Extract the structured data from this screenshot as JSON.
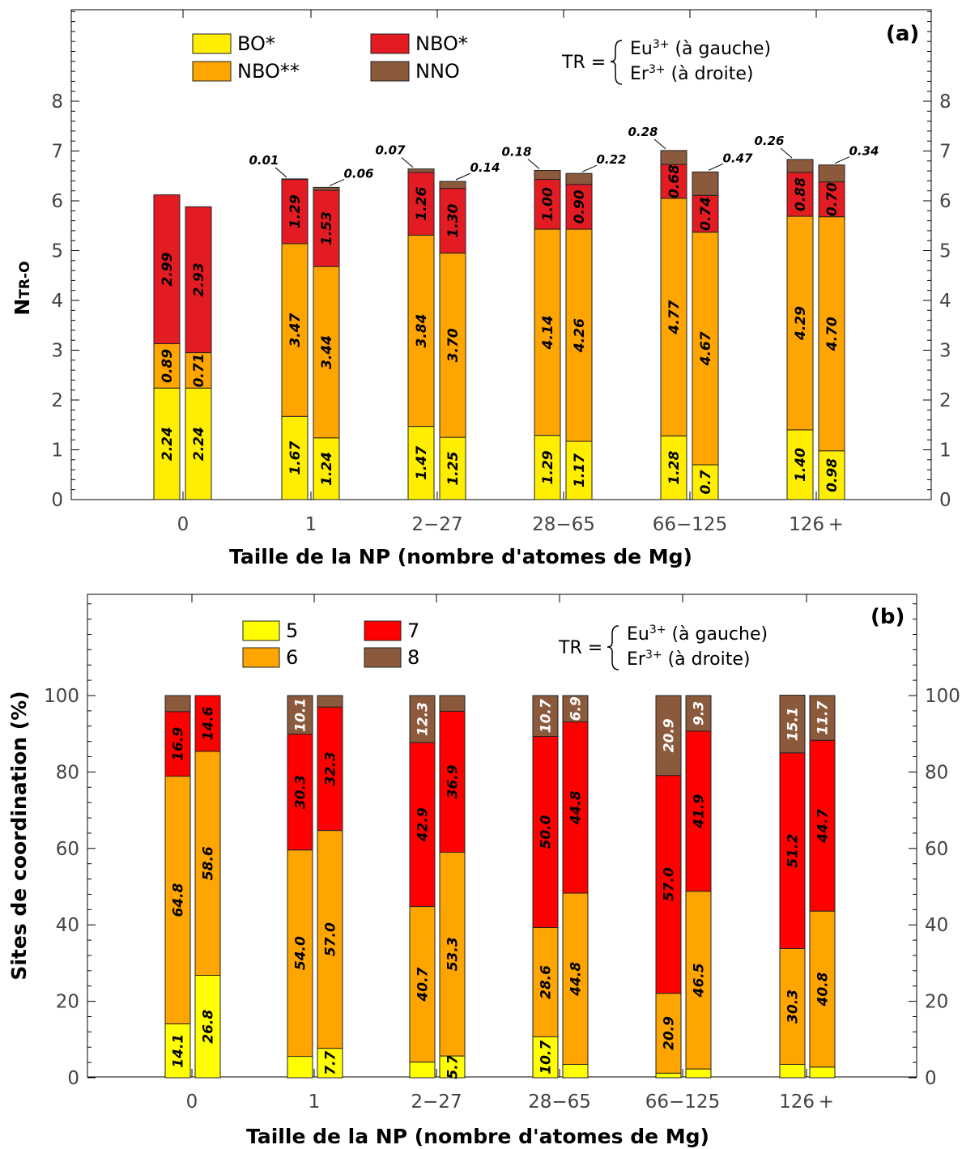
{
  "chart_data": [
    {
      "type": "bar",
      "panel_label": "(a)",
      "xlabel": "Taille de la NP (nombre d'atomes de Mg)",
      "ylabel_main": "N",
      "ylabel_sub": "TR-O",
      "ylim": [
        0,
        9
      ],
      "yticks": [
        "0",
        "1",
        "2",
        "3",
        "4",
        "5",
        "6",
        "7",
        "8"
      ],
      "categories": [
        "0",
        "1",
        "2−27",
        "28−65",
        "66−125",
        "126 +"
      ],
      "tr_prefix": "TR =",
      "tr_lines": [
        {
          "base": "Eu",
          "sup": "3+",
          "rest": " (à gauche)"
        },
        {
          "base": "Er",
          "sup": "3+",
          "rest": " (à droite)"
        }
      ],
      "series": [
        {
          "name": "BO*",
          "color": "#ffee00",
          "left": [
            2.24,
            1.67,
            1.47,
            1.29,
            1.28,
            1.4
          ],
          "right": [
            2.24,
            1.24,
            1.25,
            1.17,
            0.7,
            0.98
          ],
          "left_labels": [
            "2.24",
            "1.67",
            "1.47",
            "1.29",
            "1.28",
            "1.40"
          ],
          "right_labels": [
            "2.24",
            "1.24",
            "1.25",
            "1.17",
            "0.7",
            "0.98"
          ]
        },
        {
          "name": "NBO**",
          "color": "#ffa500",
          "left": [
            0.89,
            3.47,
            3.84,
            4.14,
            4.77,
            4.29
          ],
          "right": [
            0.71,
            3.44,
            3.7,
            4.26,
            4.67,
            4.7
          ],
          "left_labels": [
            "0.89",
            "3.47",
            "3.84",
            "4.14",
            "4.77",
            "4.29"
          ],
          "right_labels": [
            "0.71",
            "3.44",
            "3.70",
            "4.26",
            "4.67",
            "4.70"
          ]
        },
        {
          "name": "NBO*",
          "color": "#e31b23",
          "left": [
            2.99,
            1.29,
            1.26,
            1.0,
            0.68,
            0.88
          ],
          "right": [
            2.93,
            1.53,
            1.3,
            0.9,
            0.74,
            0.7
          ],
          "left_labels": [
            "2.99",
            "1.29",
            "1.26",
            "1.00",
            "0.68",
            "0.88"
          ],
          "right_labels": [
            "2.93",
            "1.53",
            "1.30",
            "0.90",
            "0.74",
            "0.70"
          ]
        },
        {
          "name": "NNO",
          "color": "#8b5a3c",
          "left": [
            0,
            0.01,
            0.07,
            0.18,
            0.28,
            0.26
          ],
          "right": [
            0,
            0.06,
            0.14,
            0.22,
            0.47,
            0.34
          ],
          "left_labels": [
            "",
            "0.01",
            "0.07",
            "0.18",
            "0.28",
            "0.26"
          ],
          "right_labels": [
            "",
            "0.06",
            "0.14",
            "0.22",
            "0.47",
            "0.34"
          ]
        }
      ]
    },
    {
      "type": "bar",
      "panel_label": "(b)",
      "xlabel": "Taille de la NP (nombre d'atomes de Mg)",
      "ylabel": "Sites de coordination (%)",
      "ylim": [
        0,
        100
      ],
      "yticks": [
        "0",
        "20",
        "40",
        "60",
        "80",
        "100"
      ],
      "categories": [
        "0",
        "1",
        "2−27",
        "28−65",
        "66−125",
        "126 +"
      ],
      "tr_prefix": "TR =",
      "tr_lines": [
        {
          "base": "Eu",
          "sup": "3+",
          "rest": " (à gauche)"
        },
        {
          "base": "Er",
          "sup": "3+",
          "rest": " (à droite)"
        }
      ],
      "series": [
        {
          "name": "5",
          "color": "#ffff00",
          "left": [
            14.1,
            5.6,
            4.1,
            10.7,
            1.2,
            3.5
          ],
          "right": [
            26.8,
            7.7,
            5.7,
            3.5,
            2.3,
            2.8
          ],
          "left_labels": [
            "14.1",
            "",
            "",
            "10.7",
            "",
            ""
          ],
          "right_labels": [
            "26.8",
            "7.7",
            "5.7",
            "",
            "",
            ""
          ]
        },
        {
          "name": "6",
          "color": "#ffa500",
          "left": [
            64.8,
            54.0,
            40.7,
            28.6,
            20.9,
            30.3
          ],
          "right": [
            58.6,
            57.0,
            53.3,
            44.8,
            46.5,
            40.8
          ],
          "left_labels": [
            "64.8",
            "54.0",
            "40.7",
            "28.6",
            "20.9",
            "30.3"
          ],
          "right_labels": [
            "58.6",
            "57.0",
            "53.3",
            "44.8",
            "46.5",
            "40.8"
          ]
        },
        {
          "name": "7",
          "color": "#ff0000",
          "left": [
            16.9,
            30.3,
            42.9,
            50.0,
            57.0,
            51.2
          ],
          "right": [
            14.6,
            32.3,
            36.9,
            44.8,
            41.9,
            44.7
          ],
          "left_labels": [
            "16.9",
            "30.3",
            "42.9",
            "50.0",
            "57.0",
            "51.2"
          ],
          "right_labels": [
            "14.6",
            "32.3",
            "36.9",
            "44.8",
            "41.9",
            "44.7"
          ]
        },
        {
          "name": "8",
          "color": "#8b5a3c",
          "left": [
            4.2,
            10.1,
            12.3,
            10.7,
            20.9,
            15.1
          ],
          "right": [
            0.0,
            3.0,
            4.1,
            6.9,
            9.3,
            11.7
          ],
          "left_labels": [
            "",
            "10.1",
            "12.3",
            "10.7",
            "20.9",
            "15.1"
          ],
          "right_labels": [
            "",
            "",
            "",
            "6.9",
            "9.3",
            "11.7"
          ]
        }
      ]
    }
  ]
}
